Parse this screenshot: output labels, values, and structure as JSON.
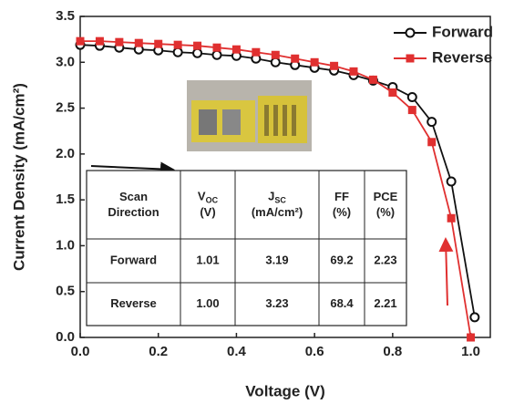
{
  "chart_data": {
    "type": "line",
    "x_label": "Voltage (V)",
    "y_label": "Current Density (mA/cm²)",
    "xlim": [
      0,
      1.05
    ],
    "xticks": [
      {
        "value": 0,
        "label": "0.0"
      },
      0.2,
      0.4,
      0.6,
      0.8,
      {
        "value": 1,
        "label": "1.0"
      }
    ],
    "ylim": [
      0,
      3.5
    ],
    "yticks": [
      {
        "value": 0,
        "label": "0.0"
      },
      0.5,
      {
        "value": 1,
        "label": "1.0"
      },
      1.5,
      {
        "value": 2,
        "label": "2.0"
      },
      2.5,
      {
        "value": 3,
        "label": "3.0"
      },
      3.5
    ],
    "legend": "upper right",
    "series": [
      {
        "name": "Forward",
        "color": "#111111",
        "marker": "circle",
        "x": [
          0,
          0.05,
          0.1,
          0.15,
          0.2,
          0.25,
          0.3,
          0.35,
          0.4,
          0.45,
          0.5,
          0.55,
          0.6,
          0.65,
          0.7,
          0.75,
          0.8,
          0.85,
          0.9,
          0.95,
          1.01
        ],
        "values": [
          3.19,
          3.18,
          3.16,
          3.14,
          3.13,
          3.11,
          3.1,
          3.08,
          3.07,
          3.04,
          3.0,
          2.97,
          2.94,
          2.91,
          2.86,
          2.8,
          2.73,
          2.62,
          2.35,
          1.7,
          0.22
        ]
      },
      {
        "name": "Reverse",
        "color": "#e03030",
        "marker": "square",
        "x": [
          0,
          0.05,
          0.1,
          0.15,
          0.2,
          0.25,
          0.3,
          0.35,
          0.4,
          0.45,
          0.5,
          0.55,
          0.6,
          0.65,
          0.7,
          0.75,
          0.8,
          0.85,
          0.9,
          0.95,
          1.0
        ],
        "values": [
          3.23,
          3.23,
          3.22,
          3.21,
          3.2,
          3.19,
          3.18,
          3.16,
          3.14,
          3.11,
          3.08,
          3.04,
          3.0,
          2.96,
          2.9,
          2.81,
          2.67,
          2.48,
          2.13,
          1.3,
          0.0
        ]
      }
    ],
    "table": {
      "header": [
        {
          "lines": [
            "Scan",
            "Direction"
          ]
        },
        {
          "main": "V",
          "sub": "OC",
          "unit": "(V)"
        },
        {
          "main": "J",
          "sub": "SC",
          "unit": "(mA/cm²)"
        },
        {
          "lines": [
            "FF",
            "(%)"
          ]
        },
        {
          "lines": [
            "PCE",
            "(%)"
          ]
        }
      ],
      "rows": [
        [
          "Forward",
          "1.01",
          "3.19",
          "69.2",
          "2.23"
        ],
        [
          "Reverse",
          "1.00",
          "3.23",
          "68.4",
          "2.21"
        ]
      ]
    }
  }
}
